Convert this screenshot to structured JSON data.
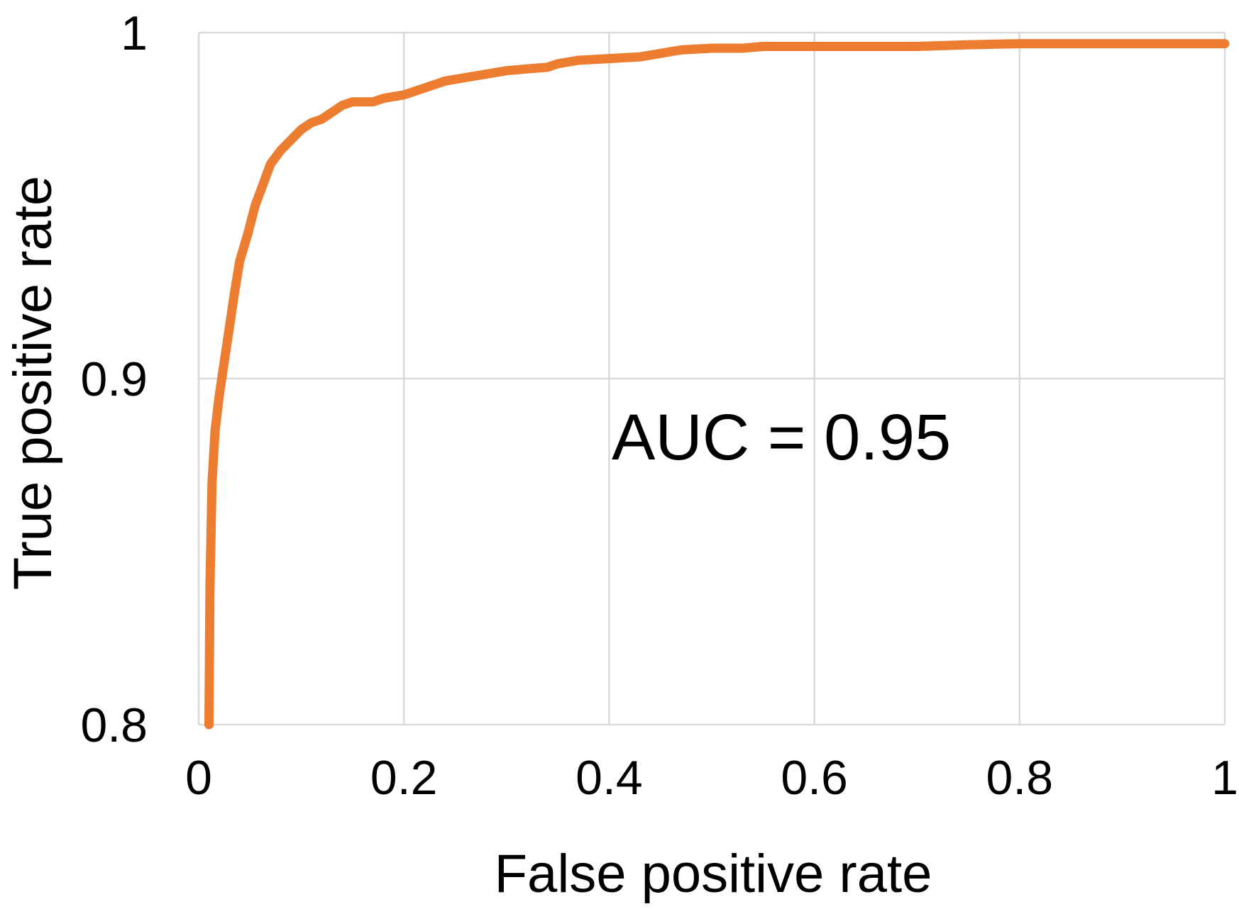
{
  "chart_data": {
    "type": "line",
    "title": "",
    "xlabel": "False positive rate",
    "ylabel": "True positive rate",
    "xlim": [
      0,
      1
    ],
    "ylim": [
      0.8,
      1
    ],
    "x_ticks": [
      0,
      0.2,
      0.4,
      0.6,
      0.8,
      1
    ],
    "y_ticks": [
      0.8,
      0.9,
      1
    ],
    "x_tick_labels": [
      "0",
      "0.2",
      "0.4",
      "0.6",
      "0.8",
      "1"
    ],
    "y_tick_labels": [
      "0.8",
      "0.9",
      "1"
    ],
    "grid": true,
    "annotation": "AUC = 0.95",
    "series": [
      {
        "color": "#ED7D31",
        "x": [
          0.01,
          0.011,
          0.013,
          0.016,
          0.02,
          0.025,
          0.03,
          0.035,
          0.04,
          0.048,
          0.055,
          0.065,
          0.07,
          0.08,
          0.09,
          0.1,
          0.11,
          0.12,
          0.13,
          0.14,
          0.15,
          0.16,
          0.17,
          0.18,
          0.2,
          0.22,
          0.24,
          0.26,
          0.27,
          0.3,
          0.32,
          0.34,
          0.35,
          0.37,
          0.4,
          0.43,
          0.45,
          0.47,
          0.5,
          0.53,
          0.55,
          0.6,
          0.7,
          0.75,
          0.8,
          1.0
        ],
        "y": [
          0.8,
          0.84,
          0.87,
          0.885,
          0.895,
          0.905,
          0.915,
          0.925,
          0.934,
          0.942,
          0.95,
          0.958,
          0.962,
          0.966,
          0.969,
          0.972,
          0.974,
          0.975,
          0.977,
          0.979,
          0.98,
          0.98,
          0.98,
          0.981,
          0.982,
          0.984,
          0.986,
          0.987,
          0.9875,
          0.989,
          0.9895,
          0.99,
          0.991,
          0.992,
          0.9925,
          0.993,
          0.994,
          0.995,
          0.9955,
          0.9955,
          0.996,
          0.996,
          0.996,
          0.9965,
          0.9968,
          0.9968
        ]
      }
    ]
  }
}
